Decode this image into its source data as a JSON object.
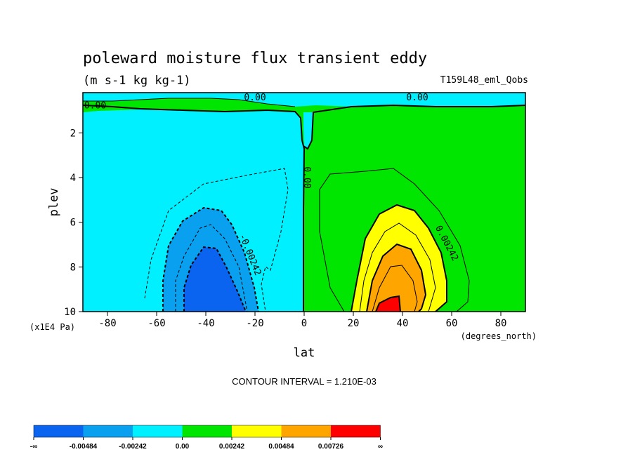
{
  "title": "poleward moisture flux transient eddy",
  "units": "(m s-1 kg kg-1)",
  "dataset": "T159L48_eml_Qobs",
  "contour_interval": "CONTOUR INTERVAL = 1.210E-03",
  "fill_colors": [
    "#0a64f0",
    "#0aa0f0",
    "#00f0ff",
    "#00e600",
    "#ffff00",
    "#ffa500",
    "#ff0000"
  ],
  "colorbar_labels": [
    "-∞",
    "-0.00484",
    "-0.00242",
    "0.00",
    "0.00242",
    "0.00484",
    "0.00726",
    "∞"
  ],
  "chart_data": {
    "type": "contour",
    "title": "poleward moisture flux transient eddy",
    "subtitle": "(m s-1 kg kg-1)",
    "dataset_label": "T159L48_eml_Qobs",
    "xlabel": "lat",
    "xunits": "(degrees_north)",
    "ylabel": "plev",
    "yunits": "(x1E4 Pa)",
    "xlim": [
      -90,
      90
    ],
    "ylim": [
      10,
      0.2
    ],
    "x_ticks": [
      -80,
      -60,
      -40,
      -20,
      0,
      20,
      40,
      60,
      80
    ],
    "x_tick_labels": [
      "-80",
      "-60",
      "-40",
      "-20",
      "0",
      "20",
      "40",
      "60",
      "80"
    ],
    "y_ticks": [
      2,
      4,
      6,
      8,
      10
    ],
    "y_tick_labels": [
      "2",
      "4",
      "6",
      "8",
      "10"
    ],
    "contour_interval": 0.00121,
    "levels": [
      -0.00484,
      -0.00242,
      0.0,
      0.00242,
      0.00484,
      0.00726
    ],
    "contour_labels": [
      {
        "text": "0.00",
        "lat": -85,
        "plev": 0.9
      },
      {
        "text": "0.00",
        "lat": -20,
        "plev": 0.55
      },
      {
        "text": "0.00",
        "lat": 46,
        "plev": 0.55
      },
      {
        "text": "0.00",
        "lat": 0,
        "plev": 4.0
      },
      {
        "text": "-0.00242",
        "lat": -23,
        "plev": 7.5
      },
      {
        "text": "0.00242",
        "lat": 57,
        "plev": 7.0
      }
    ],
    "features": [
      {
        "sign": "negative",
        "center_lat": -40,
        "center_plev": 9.0,
        "min_level": -0.00484
      },
      {
        "sign": "positive",
        "center_lat": 35,
        "center_plev": 9.7,
        "max_level": 0.00726
      }
    ],
    "colorbar": {
      "bounds": [
        "-∞",
        -0.00484,
        -0.00242,
        0.0,
        0.00242,
        0.00484,
        0.00726,
        "∞"
      ],
      "colors": [
        "#0a64f0",
        "#0aa0f0",
        "#00f0ff",
        "#00e600",
        "#ffff00",
        "#ffa500",
        "#ff0000"
      ]
    }
  }
}
